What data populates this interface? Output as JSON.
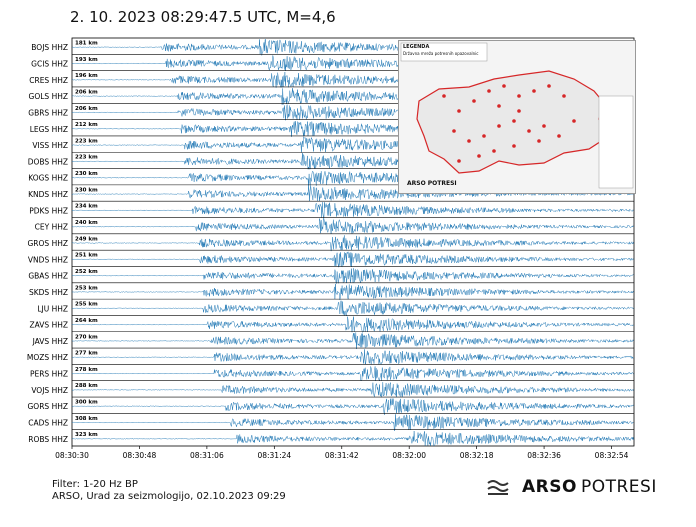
{
  "title": "2. 10. 2023 08:29:47.5 UTC, M=4,6",
  "footer": {
    "filter": "Filter: 1-20 Hz BP",
    "credit": "ARSO, Urad za seizmologijo, 02.10.2023  09:29"
  },
  "brand": {
    "bold": "ARSO",
    "light": "POTRESI"
  },
  "legend": {
    "title": "LEGENDA",
    "item": "Državna mreža potresnih opazovalnic",
    "logo": "ARSO POTRESI"
  },
  "colors": {
    "trace": "#1f77b4",
    "station_marker": "#d62728",
    "border": "#d62728"
  },
  "chart_data": {
    "type": "line",
    "xlabel": "",
    "ylabel": "",
    "x_ticks": [
      "08:30:30",
      "08:30:48",
      "08:31:06",
      "08:31:24",
      "08:31:42",
      "08:32:00",
      "08:32:18",
      "08:32:36",
      "08:32:54"
    ],
    "series": [
      {
        "name": "BOJS HHZ",
        "distance": "181 km",
        "p_onset": "08:30:54",
        "s_onset": "08:31:20"
      },
      {
        "name": "GCIS HHZ",
        "distance": "193 km",
        "p_onset": "08:30:55",
        "s_onset": "08:31:22"
      },
      {
        "name": "CRES HHZ",
        "distance": "196 km",
        "p_onset": "08:30:56",
        "s_onset": "08:31:23"
      },
      {
        "name": "GOLS HHZ",
        "distance": "206 km",
        "p_onset": "08:30:58",
        "s_onset": "08:31:26"
      },
      {
        "name": "GBRS HHZ",
        "distance": "206 km",
        "p_onset": "08:30:58",
        "s_onset": "08:31:26"
      },
      {
        "name": "LEGS HHZ",
        "distance": "212 km",
        "p_onset": "08:30:59",
        "s_onset": "08:31:28"
      },
      {
        "name": "VISS HHZ",
        "distance": "223 km",
        "p_onset": "08:31:00",
        "s_onset": "08:31:31"
      },
      {
        "name": "DOBS HHZ",
        "distance": "223 km",
        "p_onset": "08:31:00",
        "s_onset": "08:31:31"
      },
      {
        "name": "KOGS HHZ",
        "distance": "230 km",
        "p_onset": "08:31:01",
        "s_onset": "08:31:33"
      },
      {
        "name": "KNDS HHZ",
        "distance": "230 km",
        "p_onset": "08:31:01",
        "s_onset": "08:31:33"
      },
      {
        "name": "PDKS HHZ",
        "distance": "234 km",
        "p_onset": "08:31:02",
        "s_onset": "08:31:35"
      },
      {
        "name": "CEY HHZ",
        "distance": "240 km",
        "p_onset": "08:31:03",
        "s_onset": "08:31:36"
      },
      {
        "name": "GROS HHZ",
        "distance": "249 km",
        "p_onset": "08:31:04",
        "s_onset": "08:31:39"
      },
      {
        "name": "VNDS HHZ",
        "distance": "251 km",
        "p_onset": "08:31:04",
        "s_onset": "08:31:40"
      },
      {
        "name": "GBAS HHZ",
        "distance": "252 km",
        "p_onset": "08:31:05",
        "s_onset": "08:31:40"
      },
      {
        "name": "SKDS HHZ",
        "distance": "253 km",
        "p_onset": "08:31:05",
        "s_onset": "08:31:40"
      },
      {
        "name": "LJU HHZ",
        "distance": "255 km",
        "p_onset": "08:31:05",
        "s_onset": "08:31:41"
      },
      {
        "name": "ZAVS HHZ",
        "distance": "264 km",
        "p_onset": "08:31:06",
        "s_onset": "08:31:43"
      },
      {
        "name": "JAVS HHZ",
        "distance": "270 km",
        "p_onset": "08:31:07",
        "s_onset": "08:31:45"
      },
      {
        "name": "MOZS HHZ",
        "distance": "277 km",
        "p_onset": "08:31:08",
        "s_onset": "08:31:47"
      },
      {
        "name": "PERS HHZ",
        "distance": "278 km",
        "p_onset": "08:31:08",
        "s_onset": "08:31:47"
      },
      {
        "name": "VOJS HHZ",
        "distance": "288 km",
        "p_onset": "08:31:10",
        "s_onset": "08:31:50"
      },
      {
        "name": "GORS HHZ",
        "distance": "300 km",
        "p_onset": "08:31:11",
        "s_onset": "08:31:53"
      },
      {
        "name": "CADS HHZ",
        "distance": "308 km",
        "p_onset": "08:31:12",
        "s_onset": "08:31:56"
      },
      {
        "name": "ROBS HHZ",
        "distance": "323 km",
        "p_onset": "08:31:14",
        "s_onset": "08:32:00"
      }
    ]
  }
}
